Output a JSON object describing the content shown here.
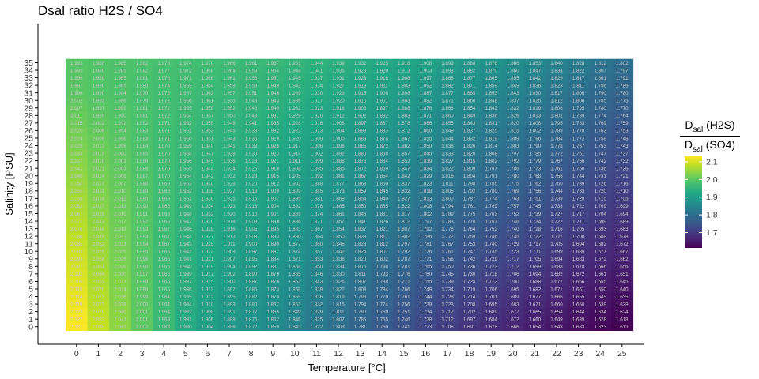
{
  "chart_data": {
    "type": "heatmap",
    "title": "Dsal ratio H2S / SO4",
    "xlabel": "Temperature [°C]",
    "ylabel": "Salinity [PSU]",
    "x": [
      0,
      1,
      2,
      3,
      4,
      5,
      6,
      7,
      8,
      9,
      10,
      11,
      12,
      13,
      14,
      15,
      16,
      17,
      18,
      19,
      20,
      21,
      22,
      23,
      24,
      25
    ],
    "y": [
      0,
      1,
      2,
      3,
      4,
      5,
      6,
      7,
      8,
      9,
      10,
      11,
      12,
      13,
      14,
      15,
      16,
      17,
      18,
      19,
      20,
      21,
      22,
      23,
      24,
      25,
      26,
      27,
      28,
      29,
      30,
      31,
      32,
      33,
      34,
      35
    ],
    "value_range": [
      1.613,
      2.131
    ],
    "colorscale": "viridis",
    "legend": {
      "title_numerator": "D",
      "title_numerator_sub": "sal",
      "title_numerator_rest": " (H2S)",
      "title_denominator": "D",
      "title_denominator_sub": "sal",
      "title_denominator_rest": " (SO4)",
      "ticks": [
        "2.1",
        "2.0",
        "1.9",
        "1.8",
        "1.7"
      ],
      "tick_values": [
        2.1,
        2.0,
        1.9,
        1.8,
        1.7
      ],
      "placement": "right"
    },
    "row_s0": [
      2.131,
      2.085,
      2.043,
      2.002,
      1.963,
      1.93,
      1.904,
      1.886,
      1.872,
      1.859,
      1.843,
      1.822,
      1.803,
      1.781,
      1.76,
      1.741,
      1.723,
      1.706,
      1.691,
      1.678,
      1.666,
      1.654,
      1.643,
      1.633,
      1.623,
      1.613
    ],
    "row_s35": [
      1.993,
      1.988,
      1.985,
      1.982,
      1.978,
      1.974,
      1.97,
      1.966,
      1.961,
      1.957,
      1.951,
      1.944,
      1.939,
      1.932,
      1.925,
      1.918,
      1.908,
      1.899,
      1.888,
      1.876,
      1.866,
      1.853,
      1.84,
      1.828,
      1.812,
      1.802
    ],
    "col0_values": [
      2.131,
      2.127,
      2.123,
      2.119,
      2.114,
      2.11,
      2.106,
      2.102,
      2.097,
      2.093,
      2.089,
      2.085,
      2.08,
      2.076,
      2.072,
      2.067,
      2.063,
      2.059,
      2.055,
      2.05,
      2.046,
      2.041,
      2.037,
      2.033,
      2.028,
      2.024,
      2.02,
      2.015,
      2.011,
      2.007,
      2.002,
      1.998,
      1.997,
      1.996,
      1.995,
      1.993
    ]
  }
}
